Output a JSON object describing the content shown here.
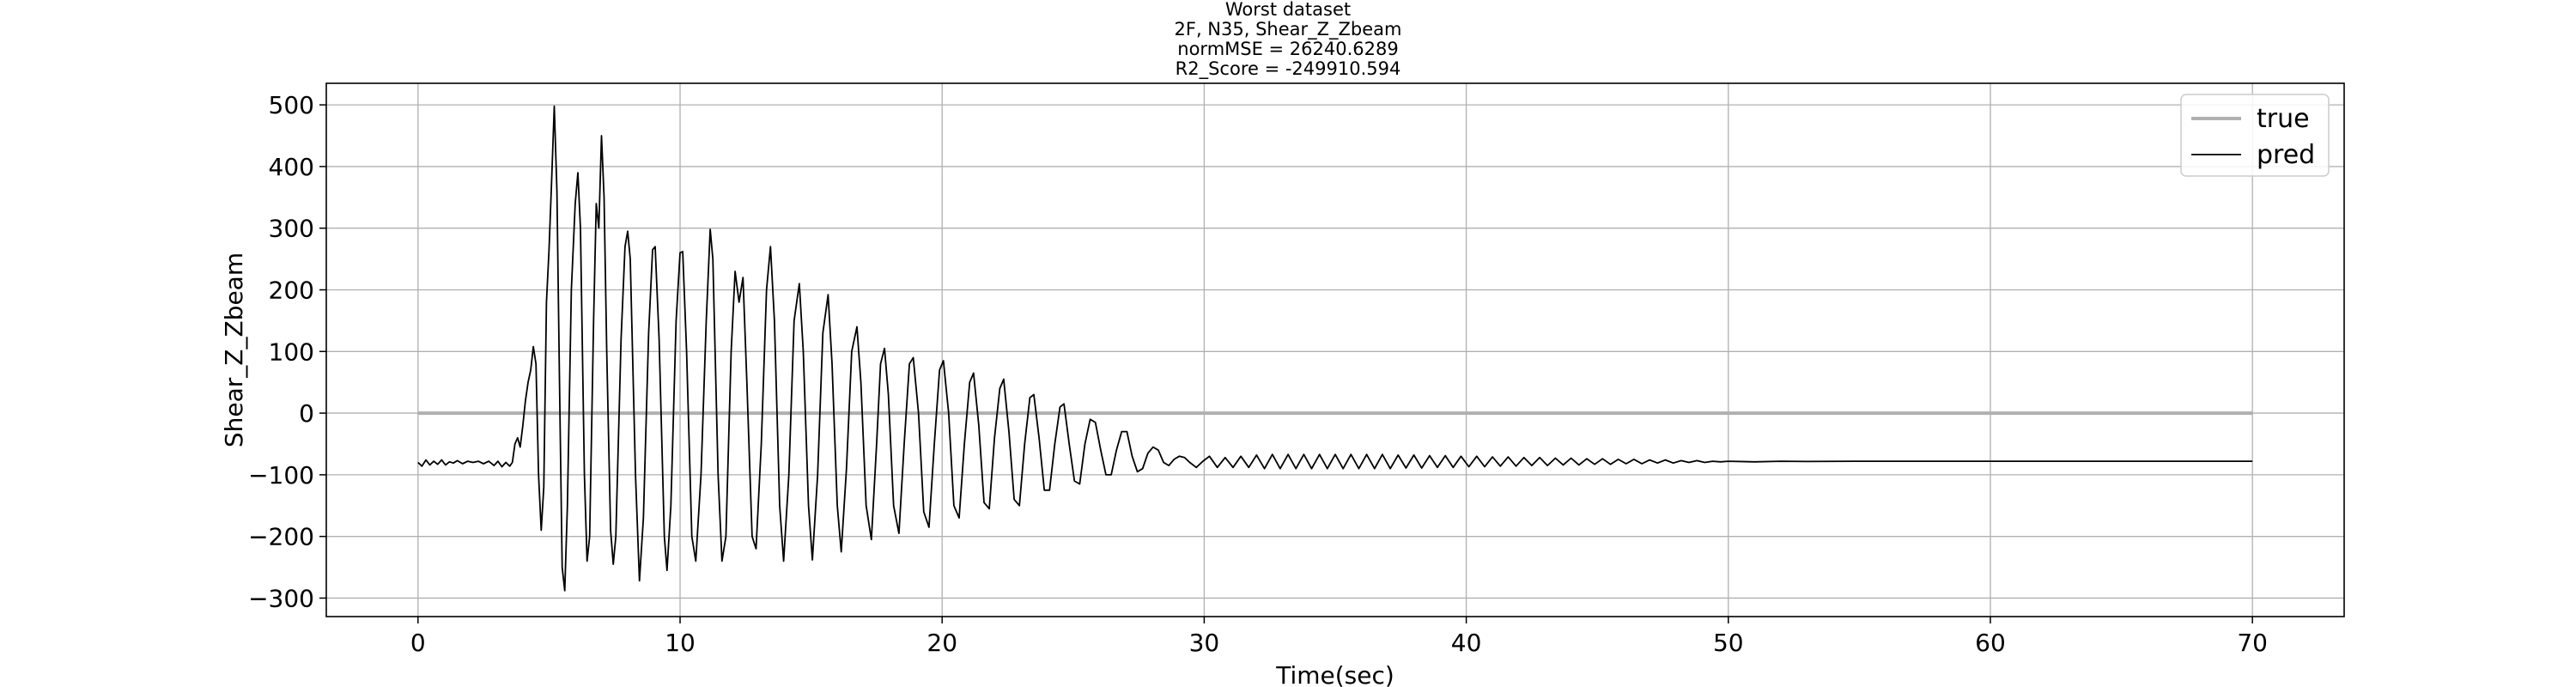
{
  "chart_data": {
    "type": "line",
    "title_lines": [
      "Worst dataset",
      "2F, N35, Shear_Z_Zbeam",
      "normMSE = 26240.6289",
      "R2_Score = -249910.594"
    ],
    "xlabel": "Time(sec)",
    "ylabel": "Shear_Z_Zbeam",
    "xlim": [
      -3.5,
      73.5
    ],
    "ylim": [
      -330,
      535
    ],
    "xticks": [
      0,
      10,
      20,
      30,
      40,
      50,
      60,
      70
    ],
    "yticks": [
      -300,
      -200,
      -100,
      0,
      100,
      200,
      300,
      400,
      500
    ],
    "grid": true,
    "legend_position": "top-right",
    "series": [
      {
        "name": "true",
        "color": "#b0b0b0",
        "points": [
          [
            0,
            0
          ],
          [
            70,
            0
          ]
        ]
      },
      {
        "name": "pred",
        "color": "#000000",
        "points": [
          [
            0.0,
            -80
          ],
          [
            0.15,
            -86
          ],
          [
            0.3,
            -76
          ],
          [
            0.45,
            -84
          ],
          [
            0.6,
            -78
          ],
          [
            0.75,
            -83
          ],
          [
            0.9,
            -76
          ],
          [
            1.05,
            -84
          ],
          [
            1.2,
            -79
          ],
          [
            1.35,
            -81
          ],
          [
            1.5,
            -77
          ],
          [
            1.7,
            -82
          ],
          [
            1.9,
            -78
          ],
          [
            2.1,
            -80
          ],
          [
            2.3,
            -78
          ],
          [
            2.5,
            -82
          ],
          [
            2.7,
            -78
          ],
          [
            2.9,
            -85
          ],
          [
            3.05,
            -78
          ],
          [
            3.2,
            -87
          ],
          [
            3.35,
            -80
          ],
          [
            3.5,
            -86
          ],
          [
            3.6,
            -80
          ],
          [
            3.7,
            -50
          ],
          [
            3.8,
            -40
          ],
          [
            3.9,
            -55
          ],
          [
            4.0,
            -20
          ],
          [
            4.1,
            20
          ],
          [
            4.2,
            50
          ],
          [
            4.3,
            70
          ],
          [
            4.4,
            108
          ],
          [
            4.5,
            80
          ],
          [
            4.6,
            -100
          ],
          [
            4.7,
            -190
          ],
          [
            4.8,
            -120
          ],
          [
            4.9,
            180
          ],
          [
            5.0,
            265
          ],
          [
            5.1,
            380
          ],
          [
            5.2,
            498
          ],
          [
            5.3,
            360
          ],
          [
            5.4,
            50
          ],
          [
            5.5,
            -250
          ],
          [
            5.6,
            -288
          ],
          [
            5.7,
            -150
          ],
          [
            5.85,
            200
          ],
          [
            6.0,
            340
          ],
          [
            6.1,
            390
          ],
          [
            6.2,
            300
          ],
          [
            6.35,
            -100
          ],
          [
            6.45,
            -240
          ],
          [
            6.55,
            -200
          ],
          [
            6.7,
            150
          ],
          [
            6.8,
            340
          ],
          [
            6.9,
            300
          ],
          [
            7.0,
            450
          ],
          [
            7.1,
            350
          ],
          [
            7.2,
            100
          ],
          [
            7.35,
            -190
          ],
          [
            7.45,
            -245
          ],
          [
            7.55,
            -200
          ],
          [
            7.75,
            120
          ],
          [
            7.9,
            270
          ],
          [
            8.0,
            295
          ],
          [
            8.1,
            250
          ],
          [
            8.3,
            -100
          ],
          [
            8.45,
            -272
          ],
          [
            8.6,
            -170
          ],
          [
            8.8,
            130
          ],
          [
            8.95,
            265
          ],
          [
            9.05,
            270
          ],
          [
            9.2,
            120
          ],
          [
            9.4,
            -200
          ],
          [
            9.5,
            -255
          ],
          [
            9.65,
            -150
          ],
          [
            9.85,
            150
          ],
          [
            10.0,
            260
          ],
          [
            10.1,
            262
          ],
          [
            10.25,
            100
          ],
          [
            10.45,
            -200
          ],
          [
            10.6,
            -240
          ],
          [
            10.8,
            -100
          ],
          [
            11.0,
            150
          ],
          [
            11.15,
            298
          ],
          [
            11.25,
            250
          ],
          [
            11.45,
            -100
          ],
          [
            11.6,
            -240
          ],
          [
            11.75,
            -200
          ],
          [
            11.95,
            100
          ],
          [
            12.1,
            230
          ],
          [
            12.25,
            180
          ],
          [
            12.4,
            220
          ],
          [
            12.55,
            50
          ],
          [
            12.75,
            -200
          ],
          [
            12.9,
            -220
          ],
          [
            13.1,
            -50
          ],
          [
            13.3,
            200
          ],
          [
            13.45,
            270
          ],
          [
            13.6,
            150
          ],
          [
            13.8,
            -150
          ],
          [
            13.95,
            -240
          ],
          [
            14.15,
            -100
          ],
          [
            14.35,
            150
          ],
          [
            14.55,
            210
          ],
          [
            14.7,
            100
          ],
          [
            14.9,
            -150
          ],
          [
            15.05,
            -238
          ],
          [
            15.25,
            -100
          ],
          [
            15.45,
            130
          ],
          [
            15.65,
            192
          ],
          [
            15.8,
            80
          ],
          [
            16.0,
            -150
          ],
          [
            16.15,
            -225
          ],
          [
            16.35,
            -90
          ],
          [
            16.55,
            100
          ],
          [
            16.75,
            140
          ],
          [
            16.9,
            50
          ],
          [
            17.1,
            -150
          ],
          [
            17.3,
            -205
          ],
          [
            17.5,
            -50
          ],
          [
            17.65,
            80
          ],
          [
            17.8,
            105
          ],
          [
            17.95,
            30
          ],
          [
            18.15,
            -150
          ],
          [
            18.35,
            -195
          ],
          [
            18.55,
            -50
          ],
          [
            18.75,
            80
          ],
          [
            18.9,
            90
          ],
          [
            19.1,
            0
          ],
          [
            19.3,
            -160
          ],
          [
            19.5,
            -185
          ],
          [
            19.7,
            -50
          ],
          [
            19.9,
            70
          ],
          [
            20.05,
            85
          ],
          [
            20.25,
            0
          ],
          [
            20.45,
            -150
          ],
          [
            20.65,
            -170
          ],
          [
            20.85,
            -50
          ],
          [
            21.05,
            50
          ],
          [
            21.2,
            65
          ],
          [
            21.4,
            -20
          ],
          [
            21.6,
            -145
          ],
          [
            21.8,
            -155
          ],
          [
            22.0,
            -40
          ],
          [
            22.2,
            40
          ],
          [
            22.35,
            55
          ],
          [
            22.55,
            -30
          ],
          [
            22.75,
            -140
          ],
          [
            22.95,
            -150
          ],
          [
            23.15,
            -50
          ],
          [
            23.35,
            25
          ],
          [
            23.5,
            30
          ],
          [
            23.7,
            -40
          ],
          [
            23.9,
            -125
          ],
          [
            24.1,
            -125
          ],
          [
            24.3,
            -50
          ],
          [
            24.5,
            10
          ],
          [
            24.65,
            15
          ],
          [
            24.85,
            -50
          ],
          [
            25.05,
            -110
          ],
          [
            25.25,
            -115
          ],
          [
            25.45,
            -50
          ],
          [
            25.65,
            -10
          ],
          [
            25.85,
            -15
          ],
          [
            26.05,
            -60
          ],
          [
            26.25,
            -100
          ],
          [
            26.45,
            -100
          ],
          [
            26.65,
            -60
          ],
          [
            26.85,
            -30
          ],
          [
            27.05,
            -30
          ],
          [
            27.25,
            -70
          ],
          [
            27.45,
            -95
          ],
          [
            27.65,
            -90
          ],
          [
            27.85,
            -65
          ],
          [
            28.05,
            -55
          ],
          [
            28.25,
            -60
          ],
          [
            28.45,
            -80
          ],
          [
            28.65,
            -85
          ],
          [
            28.85,
            -75
          ],
          [
            29.05,
            -70
          ],
          [
            29.25,
            -72
          ],
          [
            29.45,
            -80
          ],
          [
            29.7,
            -88
          ],
          [
            29.95,
            -78
          ],
          [
            30.2,
            -70
          ],
          [
            30.5,
            -88
          ],
          [
            30.8,
            -72
          ],
          [
            31.1,
            -88
          ],
          [
            31.4,
            -70
          ],
          [
            31.7,
            -88
          ],
          [
            32.0,
            -68
          ],
          [
            32.3,
            -90
          ],
          [
            32.6,
            -67
          ],
          [
            32.9,
            -90
          ],
          [
            33.2,
            -67
          ],
          [
            33.5,
            -90
          ],
          [
            33.8,
            -67
          ],
          [
            34.1,
            -90
          ],
          [
            34.4,
            -67
          ],
          [
            34.7,
            -90
          ],
          [
            35.0,
            -67
          ],
          [
            35.3,
            -90
          ],
          [
            35.6,
            -67
          ],
          [
            35.9,
            -90
          ],
          [
            36.2,
            -67
          ],
          [
            36.5,
            -90
          ],
          [
            36.8,
            -67
          ],
          [
            37.1,
            -90
          ],
          [
            37.4,
            -68
          ],
          [
            37.7,
            -89
          ],
          [
            38.0,
            -68
          ],
          [
            38.3,
            -89
          ],
          [
            38.6,
            -69
          ],
          [
            38.9,
            -88
          ],
          [
            39.2,
            -69
          ],
          [
            39.5,
            -88
          ],
          [
            39.8,
            -70
          ],
          [
            40.1,
            -87
          ],
          [
            40.4,
            -70
          ],
          [
            40.7,
            -87
          ],
          [
            41.0,
            -71
          ],
          [
            41.3,
            -86
          ],
          [
            41.6,
            -71
          ],
          [
            41.9,
            -86
          ],
          [
            42.2,
            -72
          ],
          [
            42.5,
            -85
          ],
          [
            42.8,
            -72
          ],
          [
            43.1,
            -85
          ],
          [
            43.4,
            -73
          ],
          [
            43.7,
            -84
          ],
          [
            44.0,
            -73
          ],
          [
            44.3,
            -84
          ],
          [
            44.6,
            -74
          ],
          [
            44.9,
            -83
          ],
          [
            45.2,
            -74
          ],
          [
            45.5,
            -83
          ],
          [
            45.8,
            -75
          ],
          [
            46.1,
            -82
          ],
          [
            46.4,
            -75
          ],
          [
            46.7,
            -82
          ],
          [
            47.0,
            -76
          ],
          [
            47.3,
            -81
          ],
          [
            47.6,
            -76
          ],
          [
            47.9,
            -81
          ],
          [
            48.2,
            -77
          ],
          [
            48.5,
            -80
          ],
          [
            48.8,
            -77
          ],
          [
            49.1,
            -80
          ],
          [
            49.4,
            -78
          ],
          [
            49.7,
            -79
          ],
          [
            50.0,
            -78
          ],
          [
            51.0,
            -79
          ],
          [
            52.0,
            -78
          ],
          [
            53.0,
            -78.5
          ],
          [
            55.0,
            -78
          ],
          [
            60.0,
            -78
          ],
          [
            65.0,
            -78
          ],
          [
            70.0,
            -78
          ]
        ]
      }
    ]
  }
}
